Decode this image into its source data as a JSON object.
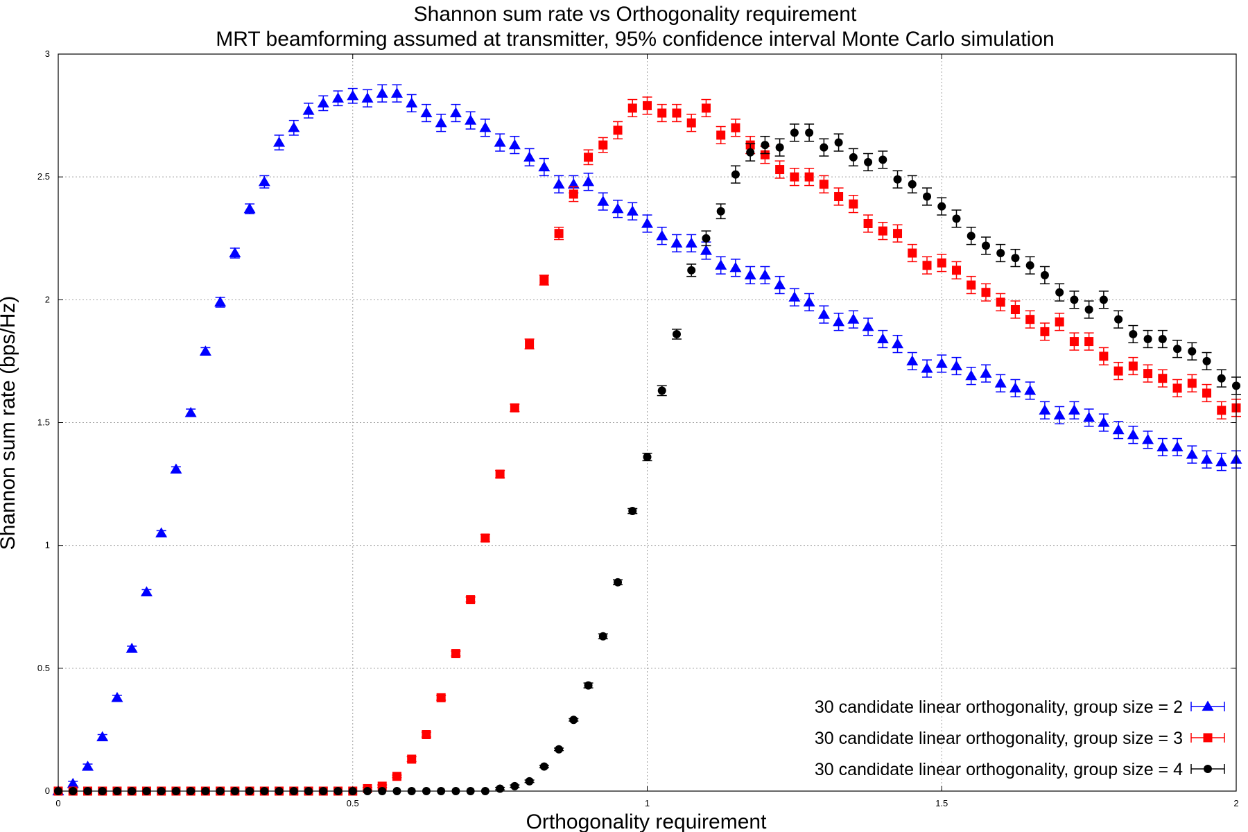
{
  "chart_data": {
    "type": "scatter",
    "title": "Shannon sum rate vs Orthogonality requirement",
    "subtitle": "MRT beamforming assumed at transmitter, 95% confidence interval Monte Carlo simulation",
    "xlabel": "Orthogonality requirement",
    "ylabel": "Shannon sum rate (bps/Hz)",
    "xlim": [
      0,
      2
    ],
    "ylim": [
      0,
      3
    ],
    "xticks": [
      "0",
      "0.5",
      "1",
      "1.5",
      "2"
    ],
    "yticks": [
      "0",
      "0.5",
      "1",
      "1.5",
      "2",
      "2.5",
      "3"
    ],
    "grid": true,
    "legend_position": "bottom-right",
    "x": [
      0,
      0.025,
      0.05,
      0.075,
      0.1,
      0.125,
      0.15,
      0.175,
      0.2,
      0.225,
      0.25,
      0.275,
      0.3,
      0.325,
      0.35,
      0.375,
      0.4,
      0.425,
      0.45,
      0.475,
      0.5,
      0.525,
      0.55,
      0.575,
      0.6,
      0.625,
      0.65,
      0.675,
      0.7,
      0.725,
      0.75,
      0.775,
      0.8,
      0.825,
      0.85,
      0.875,
      0.9,
      0.925,
      0.95,
      0.975,
      1.0,
      1.025,
      1.05,
      1.075,
      1.1,
      1.125,
      1.15,
      1.175,
      1.2,
      1.225,
      1.25,
      1.275,
      1.3,
      1.325,
      1.35,
      1.375,
      1.4,
      1.425,
      1.45,
      1.475,
      1.5,
      1.525,
      1.55,
      1.575,
      1.6,
      1.625,
      1.65,
      1.675,
      1.7,
      1.725,
      1.75,
      1.775,
      1.8,
      1.825,
      1.85,
      1.875,
      1.9,
      1.925,
      1.95,
      1.975,
      2.0
    ],
    "series": [
      {
        "name": "30 candidate linear orthogonality, group size = 2",
        "color": "#0000ff",
        "marker": "triangle",
        "values": [
          0,
          0.03,
          0.1,
          0.22,
          0.38,
          0.58,
          0.81,
          1.05,
          1.31,
          1.54,
          1.79,
          1.99,
          2.19,
          2.37,
          2.48,
          2.64,
          2.7,
          2.77,
          2.8,
          2.82,
          2.83,
          2.82,
          2.84,
          2.84,
          2.8,
          2.76,
          2.72,
          2.76,
          2.73,
          2.7,
          2.64,
          2.63,
          2.58,
          2.54,
          2.47,
          2.47,
          2.48,
          2.4,
          2.37,
          2.36,
          2.31,
          2.26,
          2.23,
          2.23,
          2.2,
          2.14,
          2.13,
          2.1,
          2.1,
          2.06,
          2.01,
          1.99,
          1.94,
          1.91,
          1.92,
          1.89,
          1.84,
          1.82,
          1.75,
          1.72,
          1.74,
          1.73,
          1.69,
          1.7,
          1.66,
          1.64,
          1.63,
          1.55,
          1.53,
          1.55,
          1.52,
          1.5,
          1.47,
          1.45,
          1.43,
          1.4,
          1.4,
          1.37,
          1.35,
          1.34,
          1.35
        ],
        "errors": [
          0,
          0.01,
          0.01,
          0.01,
          0.01,
          0.01,
          0.01,
          0.01,
          0.01,
          0.015,
          0.015,
          0.02,
          0.02,
          0.02,
          0.025,
          0.03,
          0.03,
          0.03,
          0.03,
          0.03,
          0.03,
          0.035,
          0.035,
          0.035,
          0.035,
          0.035,
          0.035,
          0.035,
          0.035,
          0.035,
          0.035,
          0.035,
          0.035,
          0.035,
          0.035,
          0.035,
          0.035,
          0.035,
          0.035,
          0.035,
          0.035,
          0.035,
          0.035,
          0.035,
          0.035,
          0.035,
          0.035,
          0.035,
          0.035,
          0.035,
          0.035,
          0.035,
          0.035,
          0.035,
          0.035,
          0.035,
          0.035,
          0.035,
          0.035,
          0.035,
          0.035,
          0.035,
          0.035,
          0.035,
          0.035,
          0.035,
          0.035,
          0.035,
          0.035,
          0.035,
          0.035,
          0.035,
          0.035,
          0.035,
          0.035,
          0.035,
          0.035,
          0.035,
          0.035,
          0.035,
          0.035
        ]
      },
      {
        "name": "30 candidate linear orthogonality, group size = 3",
        "color": "#ff0000",
        "marker": "square",
        "values": [
          0,
          0,
          0,
          0,
          0,
          0,
          0,
          0,
          0,
          0,
          0,
          0,
          0,
          0,
          0,
          0,
          0,
          0,
          0,
          0,
          0,
          0.01,
          0.02,
          0.06,
          0.13,
          0.23,
          0.38,
          0.56,
          0.78,
          1.03,
          1.29,
          1.56,
          1.82,
          2.08,
          2.27,
          2.43,
          2.58,
          2.63,
          2.69,
          2.78,
          2.79,
          2.76,
          2.76,
          2.72,
          2.78,
          2.67,
          2.7,
          2.63,
          2.59,
          2.53,
          2.5,
          2.5,
          2.47,
          2.42,
          2.39,
          2.31,
          2.28,
          2.27,
          2.19,
          2.14,
          2.15,
          2.12,
          2.06,
          2.03,
          1.99,
          1.96,
          1.92,
          1.87,
          1.91,
          1.83,
          1.83,
          1.77,
          1.71,
          1.73,
          1.7,
          1.68,
          1.64,
          1.66,
          1.62,
          1.55,
          1.56
        ],
        "errors": [
          0,
          0,
          0,
          0,
          0,
          0,
          0,
          0,
          0,
          0,
          0,
          0,
          0,
          0,
          0,
          0,
          0,
          0,
          0,
          0,
          0,
          0.005,
          0.005,
          0.005,
          0.01,
          0.01,
          0.01,
          0.01,
          0.01,
          0.015,
          0.015,
          0.015,
          0.02,
          0.02,
          0.025,
          0.03,
          0.03,
          0.03,
          0.035,
          0.035,
          0.035,
          0.035,
          0.035,
          0.035,
          0.035,
          0.035,
          0.035,
          0.035,
          0.035,
          0.035,
          0.035,
          0.035,
          0.035,
          0.035,
          0.035,
          0.035,
          0.035,
          0.035,
          0.035,
          0.035,
          0.035,
          0.035,
          0.035,
          0.035,
          0.035,
          0.035,
          0.035,
          0.035,
          0.035,
          0.035,
          0.035,
          0.035,
          0.035,
          0.035,
          0.035,
          0.035,
          0.035,
          0.035,
          0.035,
          0.035,
          0.035
        ]
      },
      {
        "name": "30 candidate linear orthogonality, group size = 4",
        "color": "#000000",
        "marker": "circle",
        "values": [
          0,
          0,
          0,
          0,
          0,
          0,
          0,
          0,
          0,
          0,
          0,
          0,
          0,
          0,
          0,
          0,
          0,
          0,
          0,
          0,
          0,
          0,
          0,
          0,
          0,
          0,
          0,
          0,
          0,
          0,
          0.01,
          0.02,
          0.04,
          0.1,
          0.17,
          0.29,
          0.43,
          0.63,
          0.85,
          1.14,
          1.36,
          1.63,
          1.86,
          2.12,
          2.25,
          2.36,
          2.51,
          2.6,
          2.63,
          2.62,
          2.68,
          2.68,
          2.62,
          2.64,
          2.58,
          2.56,
          2.57,
          2.49,
          2.47,
          2.42,
          2.38,
          2.33,
          2.26,
          2.22,
          2.19,
          2.17,
          2.14,
          2.1,
          2.03,
          2.0,
          1.96,
          2.0,
          1.92,
          1.86,
          1.84,
          1.84,
          1.8,
          1.79,
          1.75,
          1.68,
          1.65
        ],
        "errors": [
          0,
          0,
          0,
          0,
          0,
          0,
          0,
          0,
          0,
          0,
          0,
          0,
          0,
          0,
          0,
          0,
          0,
          0,
          0,
          0,
          0,
          0,
          0,
          0,
          0,
          0,
          0,
          0,
          0,
          0,
          0.005,
          0.005,
          0.005,
          0.005,
          0.005,
          0.005,
          0.01,
          0.01,
          0.01,
          0.01,
          0.015,
          0.02,
          0.02,
          0.025,
          0.03,
          0.03,
          0.035,
          0.035,
          0.035,
          0.035,
          0.035,
          0.035,
          0.035,
          0.035,
          0.035,
          0.035,
          0.035,
          0.035,
          0.035,
          0.035,
          0.035,
          0.035,
          0.035,
          0.035,
          0.035,
          0.035,
          0.035,
          0.035,
          0.035,
          0.035,
          0.035,
          0.035,
          0.035,
          0.035,
          0.035,
          0.035,
          0.035,
          0.035,
          0.035,
          0.035,
          0.035
        ]
      }
    ]
  }
}
